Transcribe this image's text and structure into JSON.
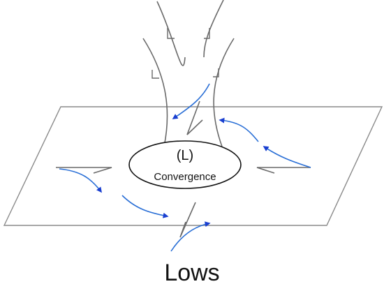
{
  "diagram": {
    "center_symbol": "(L)",
    "center_label": "Convergence",
    "caption": "Lows"
  },
  "colors": {
    "plane_outline": "#8a8a8a",
    "airflow_line": "#555555",
    "surface_flow": "#2a6fd6",
    "arrowhead": "#1a3fd0"
  },
  "icons": [
    "wind-barb-icon",
    "flow-arrow-icon"
  ]
}
